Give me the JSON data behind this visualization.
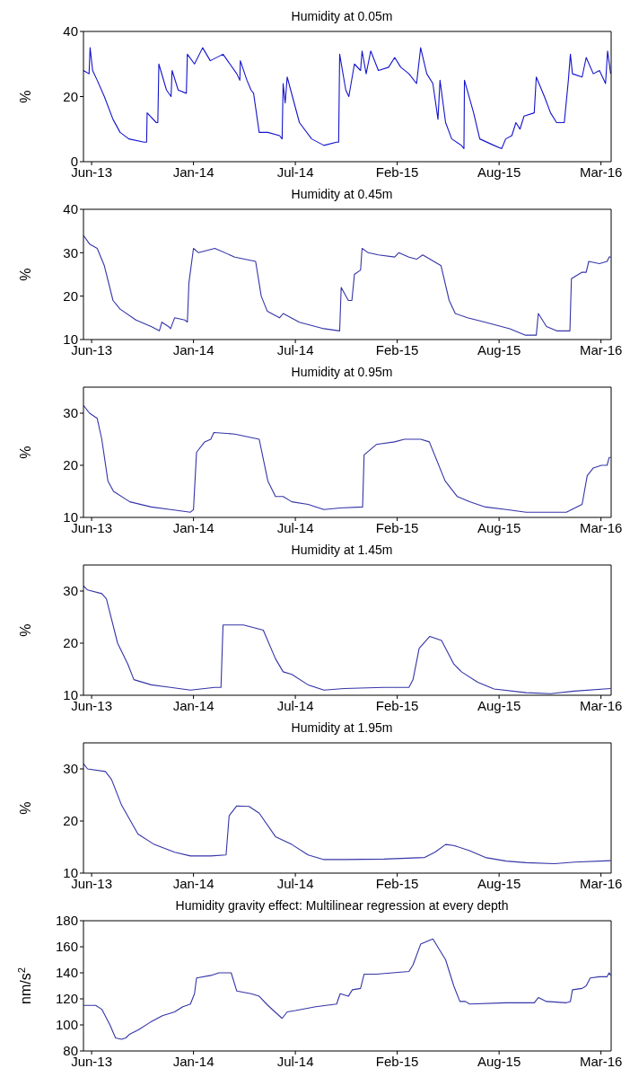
{
  "chart_data": [
    {
      "type": "line",
      "title": "Humidity at 0.05m",
      "ylabel": "%",
      "color": "#1414cc",
      "xlim": [
        "2013-06-04",
        "2016-04-05"
      ],
      "ylim": [
        0,
        40
      ],
      "yticks": [
        0,
        20,
        40
      ],
      "xticks": [
        {
          "value": "2013-06-20",
          "label": "Jun-13"
        },
        {
          "value": "2014-01-06",
          "label": "Jan-14"
        },
        {
          "value": "2014-07-25",
          "label": "Jul-14"
        },
        {
          "value": "2015-02-10",
          "label": "Feb-15"
        },
        {
          "value": "2015-08-29",
          "label": "Aug-15"
        },
        {
          "value": "2016-03-16",
          "label": "Mar-16"
        }
      ],
      "x": [
        "2013-06-04",
        "2013-06-15",
        "2013-06-17",
        "2013-06-22",
        "2013-07-01",
        "2013-07-15",
        "2013-08-01",
        "2013-08-15",
        "2013-09-01",
        "2013-10-01",
        "2013-10-06",
        "2013-10-07",
        "2013-10-25",
        "2013-10-28",
        "2013-10-30",
        "2013-11-14",
        "2013-11-23",
        "2013-11-25",
        "2013-12-07",
        "2013-12-23",
        "2013-12-25",
        "2014-01-08",
        "2014-01-24",
        "2014-02-08",
        "2014-03-05",
        "2014-04-01",
        "2014-04-07",
        "2014-04-08",
        "2014-04-21",
        "2014-04-29",
        "2014-05-04",
        "2014-05-15",
        "2014-06-01",
        "2014-06-24",
        "2014-06-29",
        "2014-07-01",
        "2014-07-05",
        "2014-07-09",
        "2014-08-02",
        "2014-08-26",
        "2014-09-19",
        "2014-10-14",
        "2014-10-18",
        "2014-10-20",
        "2014-11-01",
        "2014-11-07",
        "2014-11-18",
        "2014-11-30",
        "2014-12-03",
        "2014-12-11",
        "2014-12-20",
        "2015-01-04",
        "2015-01-24",
        "2015-02-05",
        "2015-02-17",
        "2015-03-05",
        "2015-03-20",
        "2015-03-28",
        "2015-04-09",
        "2015-04-21",
        "2015-05-01",
        "2015-05-05",
        "2015-05-16",
        "2015-05-28",
        "2015-06-16",
        "2015-06-21",
        "2015-06-22",
        "2015-07-10",
        "2015-07-22",
        "2015-08-19",
        "2015-09-03",
        "2015-09-11",
        "2015-09-23",
        "2015-10-01",
        "2015-10-09",
        "2015-10-17",
        "2015-11-06",
        "2015-11-10",
        "2015-11-26",
        "2015-12-08",
        "2015-12-20",
        "2016-01-04",
        "2016-01-12",
        "2016-01-16",
        "2016-01-20",
        "2016-02-08",
        "2016-02-16",
        "2016-03-01",
        "2016-03-13",
        "2016-03-25",
        "2016-03-29",
        "2016-04-04"
      ],
      "values": [
        28,
        27,
        35,
        28,
        25,
        20,
        13,
        9,
        7,
        6,
        6,
        15,
        12,
        12,
        30,
        22,
        20,
        28,
        22,
        21,
        33,
        30,
        35,
        31,
        33,
        27,
        25,
        31,
        25,
        22,
        21,
        9,
        9,
        8,
        7,
        24,
        18,
        26,
        12,
        7,
        5,
        6,
        6,
        33,
        22,
        20,
        30,
        28,
        34,
        27,
        34,
        28,
        29,
        32,
        29,
        27,
        24,
        35,
        27,
        24,
        13,
        25,
        12,
        7,
        5,
        4,
        25,
        15,
        7,
        5,
        4,
        7,
        8,
        12,
        10,
        14,
        15,
        26,
        20,
        15,
        12,
        12,
        25,
        33,
        27,
        26,
        32,
        27,
        28,
        24,
        34,
        27
      ]
    },
    {
      "type": "line",
      "title": "Humidity at 0.45m",
      "ylabel": "%",
      "color": "#3434a8",
      "xlim": [
        "2013-06-04",
        "2016-04-05"
      ],
      "ylim": [
        10,
        40
      ],
      "yticks": [
        10,
        20,
        30,
        40
      ],
      "xticks": [
        {
          "value": "2013-06-20",
          "label": "Jun-13"
        },
        {
          "value": "2014-01-06",
          "label": "Jan-14"
        },
        {
          "value": "2014-07-25",
          "label": "Jul-14"
        },
        {
          "value": "2015-02-10",
          "label": "Feb-15"
        },
        {
          "value": "2015-08-29",
          "label": "Aug-15"
        },
        {
          "value": "2016-03-16",
          "label": "Mar-16"
        }
      ],
      "x": [
        "2013-06-04",
        "2013-06-16",
        "2013-07-01",
        "2013-07-15",
        "2013-08-01",
        "2013-08-15",
        "2013-09-15",
        "2013-10-15",
        "2013-10-31",
        "2013-11-05",
        "2013-11-18",
        "2013-11-22",
        "2013-11-30",
        "2013-12-20",
        "2013-12-25",
        "2013-12-28",
        "2014-01-06",
        "2014-01-16",
        "2014-02-17",
        "2014-03-28",
        "2014-05-08",
        "2014-05-19",
        "2014-05-31",
        "2014-06-24",
        "2014-07-01",
        "2014-08-02",
        "2014-09-19",
        "2014-10-20",
        "2014-10-23",
        "2014-11-06",
        "2014-11-13",
        "2014-11-18",
        "2014-11-30",
        "2014-12-03",
        "2014-12-15",
        "2015-01-04",
        "2015-02-05",
        "2015-02-13",
        "2015-03-05",
        "2015-03-20",
        "2015-04-01",
        "2015-05-07",
        "2015-05-23",
        "2015-06-04",
        "2015-06-28",
        "2015-08-02",
        "2015-09-19",
        "2015-10-20",
        "2015-11-10",
        "2015-11-14",
        "2015-11-30",
        "2015-12-20",
        "2016-01-15",
        "2016-01-18",
        "2016-02-08",
        "2016-02-16",
        "2016-02-21",
        "2016-03-13",
        "2016-03-28",
        "2016-04-01",
        "2016-04-04"
      ],
      "values": [
        34,
        32,
        31,
        27,
        19,
        17,
        14.5,
        13,
        12,
        14,
        13,
        12.5,
        15,
        14.5,
        14,
        23,
        31,
        30,
        31,
        29,
        28,
        20,
        16.5,
        15,
        16,
        14,
        12.5,
        12,
        22,
        19,
        19,
        25,
        26,
        31,
        30,
        29.5,
        29,
        30,
        29,
        28.5,
        29.5,
        27,
        19,
        16,
        15,
        14,
        12.5,
        11,
        11,
        16,
        13,
        12,
        12,
        24,
        25.5,
        25.5,
        28,
        27.5,
        28,
        29,
        29
      ]
    },
    {
      "type": "line",
      "title": "Humidity at 0.95m",
      "ylabel": "%",
      "color": "#3434a8",
      "xlim": [
        "2013-06-04",
        "2016-04-05"
      ],
      "ylim": [
        10,
        35
      ],
      "yticks": [
        10,
        20,
        30
      ],
      "xticks": [
        {
          "value": "2013-06-20",
          "label": "Jun-13"
        },
        {
          "value": "2014-01-06",
          "label": "Jan-14"
        },
        {
          "value": "2014-07-25",
          "label": "Jul-14"
        },
        {
          "value": "2015-02-10",
          "label": "Feb-15"
        },
        {
          "value": "2015-08-29",
          "label": "Aug-15"
        },
        {
          "value": "2016-03-16",
          "label": "Mar-16"
        }
      ],
      "x": [
        "2013-06-04",
        "2013-06-16",
        "2013-07-01",
        "2013-07-10",
        "2013-07-22",
        "2013-08-02",
        "2013-09-03",
        "2013-10-15",
        "2013-11-22",
        "2013-12-31",
        "2014-01-06",
        "2014-01-12",
        "2014-01-28",
        "2014-02-09",
        "2014-02-15",
        "2014-03-28",
        "2014-05-15",
        "2014-06-01",
        "2014-06-16",
        "2014-07-01",
        "2014-07-18",
        "2014-08-19",
        "2014-09-19",
        "2014-10-21",
        "2014-12-04",
        "2014-12-07",
        "2014-12-31",
        "2015-02-05",
        "2015-02-24",
        "2015-03-28",
        "2015-04-14",
        "2015-05-15",
        "2015-06-08",
        "2015-07-02",
        "2015-08-02",
        "2015-09-12",
        "2015-10-21",
        "2016-01-08",
        "2016-02-08",
        "2016-02-18",
        "2016-03-01",
        "2016-03-17",
        "2016-03-28",
        "2016-04-01",
        "2016-04-04"
      ],
      "values": [
        31.5,
        30,
        29,
        25,
        17,
        15,
        13,
        12,
        11.5,
        11,
        11.5,
        22.5,
        24.5,
        25,
        26.3,
        26,
        25,
        17,
        14,
        14,
        13,
        12.5,
        11.5,
        11.8,
        12,
        22,
        24,
        24.5,
        25,
        25,
        24.5,
        17,
        14,
        13,
        12,
        11.5,
        11,
        11,
        12.5,
        18,
        19.5,
        20,
        20,
        21.5,
        21.5
      ]
    },
    {
      "type": "line",
      "title": "Humidity at 1.45m",
      "ylabel": "%",
      "color": "#3434a8",
      "xlim": [
        "2013-06-04",
        "2016-04-05"
      ],
      "ylim": [
        10,
        35
      ],
      "yticks": [
        10,
        20,
        30
      ],
      "xticks": [
        {
          "value": "2013-06-20",
          "label": "Jun-13"
        },
        {
          "value": "2014-01-06",
          "label": "Jan-14"
        },
        {
          "value": "2014-07-25",
          "label": "Jul-14"
        },
        {
          "value": "2015-02-10",
          "label": "Feb-15"
        },
        {
          "value": "2015-08-29",
          "label": "Aug-15"
        },
        {
          "value": "2016-03-16",
          "label": "Mar-16"
        }
      ],
      "x": [
        "2013-06-04",
        "2013-06-12",
        "2013-07-10",
        "2013-07-19",
        "2013-08-10",
        "2013-08-30",
        "2013-09-11",
        "2013-10-15",
        "2013-11-22",
        "2013-12-31",
        "2014-02-17",
        "2014-03-01",
        "2014-03-05",
        "2014-04-14",
        "2014-05-23",
        "2014-06-16",
        "2014-07-01",
        "2014-07-18",
        "2014-08-19",
        "2014-09-19",
        "2014-10-29",
        "2015-01-15",
        "2015-03-05",
        "2015-03-13",
        "2015-03-25",
        "2015-04-15",
        "2015-05-08",
        "2015-06-01",
        "2015-06-16",
        "2015-07-18",
        "2015-08-19",
        "2015-10-21",
        "2015-12-08",
        "2016-01-24",
        "2016-04-04"
      ],
      "values": [
        31,
        30.2,
        29.5,
        28.5,
        20,
        16,
        13,
        12,
        11.5,
        11,
        11.5,
        11.5,
        23.5,
        23.5,
        22.5,
        17,
        14.5,
        14,
        12,
        11,
        11.3,
        11.5,
        11.5,
        13,
        19,
        21.3,
        20.5,
        16,
        14.5,
        12.5,
        11.2,
        10.5,
        10.3,
        10.8,
        11.3
      ]
    },
    {
      "type": "line",
      "title": "Humidity at 1.95m",
      "ylabel": "%",
      "color": "#3434a8",
      "xlim": [
        "2013-06-04",
        "2016-04-05"
      ],
      "ylim": [
        10,
        35
      ],
      "yticks": [
        10,
        20,
        30
      ],
      "xticks": [
        {
          "value": "2013-06-20",
          "label": "Jun-13"
        },
        {
          "value": "2014-01-06",
          "label": "Jan-14"
        },
        {
          "value": "2014-07-25",
          "label": "Jul-14"
        },
        {
          "value": "2015-02-10",
          "label": "Feb-15"
        },
        {
          "value": "2015-08-29",
          "label": "Aug-15"
        },
        {
          "value": "2016-03-16",
          "label": "Mar-16"
        }
      ],
      "x": [
        "2013-06-04",
        "2013-06-12",
        "2013-07-17",
        "2013-07-29",
        "2013-08-18",
        "2013-09-19",
        "2013-10-21",
        "2013-11-30",
        "2013-12-31",
        "2014-02-09",
        "2014-03-11",
        "2014-03-17",
        "2014-04-01",
        "2014-04-25",
        "2014-05-15",
        "2014-06-16",
        "2014-07-18",
        "2014-08-19",
        "2014-09-19",
        "2014-10-29",
        "2015-01-15",
        "2015-04-05",
        "2015-04-25",
        "2015-05-16",
        "2015-06-01",
        "2015-07-02",
        "2015-08-02",
        "2015-09-12",
        "2015-10-21",
        "2015-12-16",
        "2016-01-24",
        "2016-04-04"
      ],
      "values": [
        31,
        30,
        29.5,
        28,
        23,
        17.5,
        15.5,
        14,
        13.3,
        13.3,
        13.5,
        21,
        22.9,
        22.8,
        21.5,
        17,
        15.5,
        13.5,
        12.6,
        12.6,
        12.7,
        13,
        14,
        15.5,
        15.3,
        14.3,
        13,
        12.3,
        12,
        11.8,
        12.1,
        12.4
      ]
    },
    {
      "type": "line",
      "title": "Humidity gravity effect: Multilinear regression at every depth",
      "ylabel": "nm/s$^{2}$",
      "color": "#3434a8",
      "xlim": [
        "2013-06-04",
        "2016-04-05"
      ],
      "ylim": [
        80,
        180
      ],
      "yticks": [
        80,
        100,
        120,
        140,
        160,
        180
      ],
      "xticks": [
        {
          "value": "2013-06-20",
          "label": "Jun-13"
        },
        {
          "value": "2014-01-06",
          "label": "Jan-14"
        },
        {
          "value": "2014-07-25",
          "label": "Jul-14"
        },
        {
          "value": "2015-02-10",
          "label": "Feb-15"
        },
        {
          "value": "2015-08-29",
          "label": "Aug-15"
        },
        {
          "value": "2016-03-16",
          "label": "Mar-16"
        }
      ],
      "x": [
        "2013-06-04",
        "2013-06-28",
        "2013-07-10",
        "2013-07-26",
        "2013-08-06",
        "2013-08-18",
        "2013-08-26",
        "2013-09-03",
        "2013-09-19",
        "2013-10-13",
        "2013-11-06",
        "2013-11-30",
        "2013-12-16",
        "2013-12-24",
        "2013-12-31",
        "2014-01-08",
        "2014-01-12",
        "2014-02-09",
        "2014-02-25",
        "2014-03-21",
        "2014-04-01",
        "2014-04-29",
        "2014-05-15",
        "2014-06-01",
        "2014-06-29",
        "2014-07-09",
        "2014-07-25",
        "2014-09-03",
        "2014-10-14",
        "2014-10-21",
        "2014-11-06",
        "2014-11-14",
        "2014-11-30",
        "2014-12-07",
        "2014-12-31",
        "2015-03-05",
        "2015-03-13",
        "2015-03-28",
        "2015-04-21",
        "2015-05-16",
        "2015-06-01",
        "2015-06-13",
        "2015-06-24",
        "2015-07-02",
        "2015-09-12",
        "2015-11-06",
        "2015-11-14",
        "2015-11-30",
        "2016-01-08",
        "2016-01-16",
        "2016-01-20",
        "2016-02-08",
        "2016-02-16",
        "2016-02-24",
        "2016-03-13",
        "2016-03-28",
        "2016-04-01",
        "2016-04-04"
      ],
      "values": [
        115,
        115,
        112,
        100,
        90,
        89,
        90,
        93,
        96,
        102,
        107,
        110,
        114,
        115,
        116,
        124,
        136,
        138,
        140,
        140,
        126,
        124,
        122,
        115,
        105,
        110,
        111,
        114,
        116,
        124,
        122,
        127,
        128,
        139,
        139,
        141,
        146,
        162,
        166,
        150,
        130,
        118,
        118,
        116,
        117,
        117,
        121,
        118,
        117,
        118,
        127,
        128,
        130,
        136,
        137,
        137,
        140,
        138
      ]
    }
  ]
}
